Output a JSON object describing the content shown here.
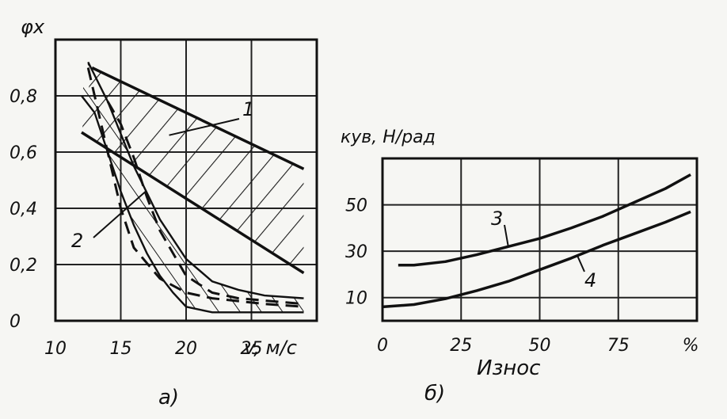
{
  "chart_data": [
    {
      "type": "area",
      "panel_label": "а)",
      "ylabel": "φx",
      "xlabel": "v, м/с",
      "xlim": [
        10,
        30
      ],
      "ylim": [
        0,
        1.0
      ],
      "x_ticks": [
        "10",
        "15",
        "20",
        "25"
      ],
      "y_ticks": [
        "0",
        "0,2",
        "0,4",
        "0,6",
        "0,8"
      ],
      "grid": true,
      "series": [
        {
          "name": "1",
          "band_upper": {
            "x": [
              12.8,
              29.0
            ],
            "y": [
              0.9,
              0.54
            ]
          },
          "band_lower": {
            "x": [
              12.0,
              29.0
            ],
            "y": [
              0.67,
              0.17
            ]
          }
        },
        {
          "name": "2",
          "band_upper": {
            "x": [
              12.5,
              14.0,
              16.0,
              18.0,
              20.0,
              22.0,
              24.0,
              26.0,
              29.0
            ],
            "y": [
              0.92,
              0.78,
              0.55,
              0.36,
              0.22,
              0.14,
              0.11,
              0.09,
              0.08
            ]
          },
          "band_lower": {
            "x": [
              12.0,
              13.0,
              14.0,
              15.0,
              16.0,
              17.0,
              18.0,
              19.0,
              20.0,
              21.0,
              22.0,
              24.0,
              29.0
            ],
            "y": [
              0.8,
              0.74,
              0.6,
              0.46,
              0.34,
              0.24,
              0.16,
              0.1,
              0.05,
              0.04,
              0.03,
              0.03,
              0.03
            ]
          },
          "dashed_boundaries": [
            {
              "x": [
                12.5,
                13.0,
                14.0,
                15.0,
                16.0,
                18.0,
                20.0,
                22.0,
                24.0,
                26.0,
                29.0
              ],
              "y": [
                0.9,
                0.8,
                0.6,
                0.4,
                0.26,
                0.15,
                0.1,
                0.08,
                0.07,
                0.06,
                0.05
              ]
            },
            {
              "x": [
                14.0,
                15.0,
                16.0,
                17.0,
                18.0,
                20.0,
                22.0,
                24.0,
                29.0
              ],
              "y": [
                0.78,
                0.7,
                0.58,
                0.44,
                0.32,
                0.16,
                0.1,
                0.08,
                0.06
              ]
            }
          ]
        }
      ]
    },
    {
      "type": "line",
      "panel_label": "б)",
      "ylabel": "кув, Н/рад",
      "xlabel": "Износ",
      "xlim": [
        0,
        100
      ],
      "ylim": [
        0,
        70
      ],
      "x_ticks": [
        "0",
        "25",
        "50",
        "75",
        "%"
      ],
      "y_ticks": [
        "10",
        "30",
        "50"
      ],
      "grid": true,
      "series": [
        {
          "name": "3",
          "x": [
            5,
            10,
            20,
            30,
            40,
            50,
            60,
            70,
            80,
            90,
            98
          ],
          "y": [
            24,
            24,
            25.5,
            28.5,
            32,
            35.5,
            40,
            45,
            51,
            57,
            63
          ]
        },
        {
          "name": "4",
          "x": [
            0,
            10,
            20,
            30,
            40,
            50,
            60,
            70,
            80,
            90,
            98
          ],
          "y": [
            6,
            7,
            9.5,
            13,
            17,
            22,
            27,
            32.5,
            37.5,
            42.5,
            47
          ]
        }
      ]
    }
  ]
}
